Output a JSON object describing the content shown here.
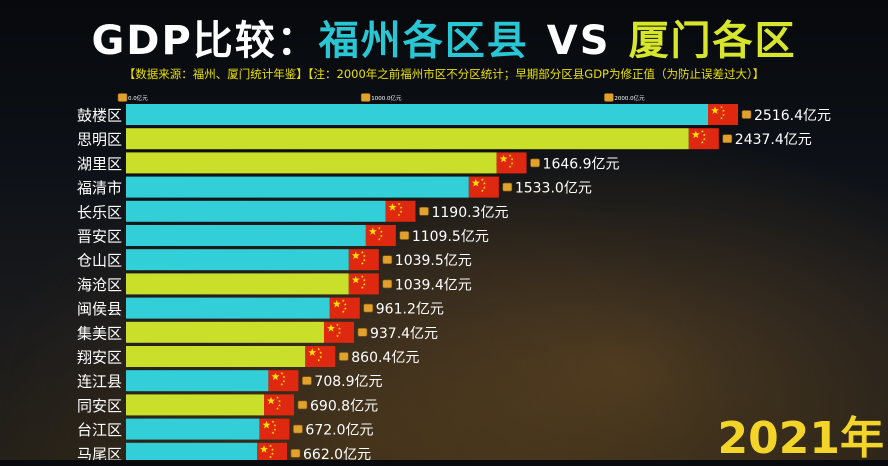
{
  "title_parts": {
    "prefix": "GDP比较：",
    "fuzhou": "福州各区县",
    "vs": "VS",
    "xiamen": "厦门各区"
  },
  "note": "【数据来源：福州、厦门统计年鉴】【注：2000年之前福州市区不分区统计；早期部分区县GDP为修正值（为防止误差过大）】",
  "year": "2021年",
  "colors": {
    "fuzhou": "#33cfd8",
    "xiamen": "#c9df2a",
    "flag": "#de2910",
    "flag_star": "#ffde00",
    "label": "#ffffff"
  },
  "chart_data": {
    "type": "bar",
    "orientation": "horizontal",
    "unit": "亿元",
    "ticks": [
      {
        "value": 0,
        "label": "0.0亿元"
      },
      {
        "value": 1000,
        "label": "1000.0亿元"
      },
      {
        "value": 2000,
        "label": "2000.0亿元"
      }
    ],
    "categories": [
      "鼓楼区",
      "思明区",
      "湖里区",
      "福清市",
      "长乐区",
      "晋安区",
      "仓山区",
      "海沧区",
      "闽侯县",
      "集美区",
      "翔安区",
      "连江县",
      "同安区",
      "台江区",
      "马尾区"
    ],
    "values": [
      2516.4,
      2437.4,
      1646.9,
      1533.0,
      1190.3,
      1109.5,
      1039.5,
      1039.4,
      961.2,
      937.4,
      860.4,
      708.9,
      690.8,
      672.0,
      662.0
    ],
    "value_labels": [
      "2516.4亿元",
      "2437.4亿元",
      "1646.9亿元",
      "1533.0亿元",
      "1190.3亿元",
      "1109.5亿元",
      "1039.5亿元",
      "1039.4亿元",
      "961.2亿元",
      "937.4亿元",
      "860.4亿元",
      "708.9亿元",
      "690.8亿元",
      "672.0亿元",
      "662.0亿元"
    ],
    "city": [
      "福州",
      "厦门",
      "厦门",
      "福州",
      "福州",
      "福州",
      "福州",
      "厦门",
      "福州",
      "厦门",
      "厦门",
      "福州",
      "厦门",
      "福州",
      "福州"
    ],
    "xlim": [
      0,
      2516.4
    ]
  }
}
